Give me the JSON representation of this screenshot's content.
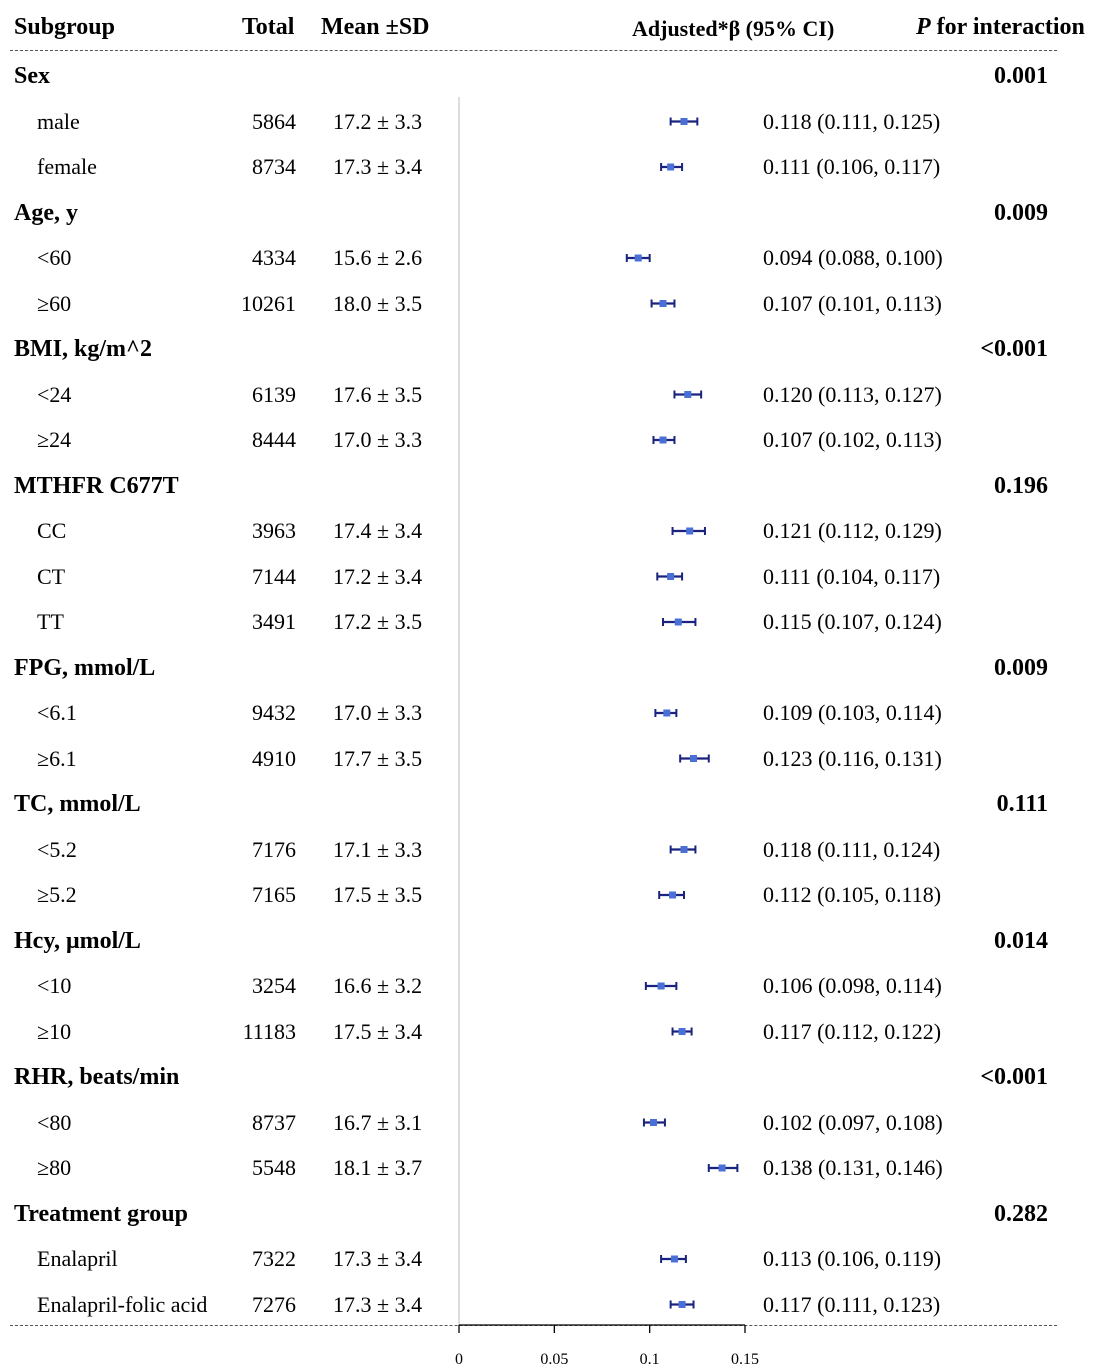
{
  "header": {
    "subgroup": "Subgroup",
    "total": "Total",
    "mean_sd": "Mean ±SD",
    "beta": "Adjusted*β (95% CI)",
    "p_italic": "P",
    "p_rest": " for interaction"
  },
  "rows": [
    {
      "kind": "group",
      "label": "Sex",
      "p": "0.001"
    },
    {
      "kind": "sub",
      "label": "male",
      "total": "5864",
      "mean_sd": "17.2 ± 3.3",
      "ci_text": "0.118 (0.111, 0.125)"
    },
    {
      "kind": "sub",
      "label": "female",
      "total": "8734",
      "mean_sd": "17.3 ± 3.4",
      "ci_text": "0.111 (0.106, 0.117)"
    },
    {
      "kind": "group",
      "label": "Age, y",
      "p": "0.009"
    },
    {
      "kind": "sub",
      "label": "<60",
      "total": "4334",
      "mean_sd": "15.6 ± 2.6",
      "ci_text": "0.094 (0.088, 0.100)"
    },
    {
      "kind": "sub",
      "label": "≥60",
      "total": "10261",
      "mean_sd": "18.0 ± 3.5",
      "ci_text": "0.107 (0.101, 0.113)"
    },
    {
      "kind": "group",
      "label": "BMI, kg/m^2",
      "p": "<0.001"
    },
    {
      "kind": "sub",
      "label": "<24",
      "total": "6139",
      "mean_sd": "17.6 ± 3.5",
      "ci_text": "0.120 (0.113, 0.127)"
    },
    {
      "kind": "sub",
      "label": "≥24",
      "total": "8444",
      "mean_sd": "17.0 ± 3.3",
      "ci_text": "0.107 (0.102, 0.113)"
    },
    {
      "kind": "group",
      "label": "MTHFR C677T",
      "p": "0.196"
    },
    {
      "kind": "sub",
      "label": "CC",
      "total": "3963",
      "mean_sd": "17.4 ± 3.4",
      "ci_text": "0.121 (0.112, 0.129)"
    },
    {
      "kind": "sub",
      "label": "CT",
      "total": "7144",
      "mean_sd": "17.2 ± 3.4",
      "ci_text": "0.111 (0.104, 0.117)"
    },
    {
      "kind": "sub",
      "label": "TT",
      "total": "3491",
      "mean_sd": "17.2 ± 3.5",
      "ci_text": "0.115 (0.107, 0.124)"
    },
    {
      "kind": "group",
      "label": "FPG, mmol/L",
      "p": "0.009"
    },
    {
      "kind": "sub",
      "label": "<6.1",
      "total": "9432",
      "mean_sd": "17.0 ± 3.3",
      "ci_text": "0.109 (0.103, 0.114)"
    },
    {
      "kind": "sub",
      "label": "≥6.1",
      "total": "4910",
      "mean_sd": "17.7 ± 3.5",
      "ci_text": "0.123 (0.116, 0.131)"
    },
    {
      "kind": "group",
      "label": "TC, mmol/L",
      "p": "0.111"
    },
    {
      "kind": "sub",
      "label": "<5.2",
      "total": "7176",
      "mean_sd": "17.1 ± 3.3",
      "ci_text": "0.118 (0.111, 0.124)"
    },
    {
      "kind": "sub",
      "label": "≥5.2",
      "total": "7165",
      "mean_sd": "17.5 ± 3.5",
      "ci_text": "0.112 (0.105, 0.118)"
    },
    {
      "kind": "group",
      "label": "Hcy, μmol/L",
      "p": "0.014"
    },
    {
      "kind": "sub",
      "label": "<10",
      "total": "3254",
      "mean_sd": "16.6 ± 3.2",
      "ci_text": "0.106 (0.098, 0.114)"
    },
    {
      "kind": "sub",
      "label": "≥10",
      "total": "11183",
      "mean_sd": "17.5 ± 3.4",
      "ci_text": "0.117 (0.112, 0.122)"
    },
    {
      "kind": "group",
      "label": "RHR, beats/min",
      "p": "<0.001"
    },
    {
      "kind": "sub",
      "label": "<80",
      "total": "8737",
      "mean_sd": "16.7 ± 3.1",
      "ci_text": "0.102 (0.097, 0.108)"
    },
    {
      "kind": "sub",
      "label": "≥80",
      "total": "5548",
      "mean_sd": "18.1 ± 3.7",
      "ci_text": "0.138 (0.131, 0.146)"
    },
    {
      "kind": "group",
      "label": "Treatment group",
      "p": "0.282"
    },
    {
      "kind": "sub",
      "label": "Enalapril",
      "total": "7322",
      "mean_sd": "17.3 ± 3.4",
      "ci_text": "0.113 (0.106, 0.119)"
    },
    {
      "kind": "sub",
      "label": "Enalapril-folic acid",
      "total": "7276",
      "mean_sd": "17.3 ± 3.4",
      "ci_text": "0.117 (0.111, 0.123)"
    }
  ],
  "chart_data": {
    "type": "forest",
    "xlim": [
      0,
      0.15
    ],
    "xticks": [
      0,
      0.05,
      0.1,
      0.15
    ],
    "xtick_labels": [
      "0",
      "0.05",
      "0.1",
      "0.15"
    ],
    "reference_line": 0,
    "colors": {
      "point": "#4a6fd6",
      "ci": "#1a237e",
      "axis": "#000000",
      "reference": "#bbbbbb"
    },
    "points": [
      {
        "subgroup": "male",
        "beta": 0.118,
        "lower": 0.111,
        "upper": 0.125
      },
      {
        "subgroup": "female",
        "beta": 0.111,
        "lower": 0.106,
        "upper": 0.117
      },
      {
        "subgroup": "<60",
        "beta": 0.094,
        "lower": 0.088,
        "upper": 0.1
      },
      {
        "subgroup": "≥60",
        "beta": 0.107,
        "lower": 0.101,
        "upper": 0.113
      },
      {
        "subgroup": "<24",
        "beta": 0.12,
        "lower": 0.113,
        "upper": 0.127
      },
      {
        "subgroup": "≥24",
        "beta": 0.107,
        "lower": 0.102,
        "upper": 0.113
      },
      {
        "subgroup": "CC",
        "beta": 0.121,
        "lower": 0.112,
        "upper": 0.129
      },
      {
        "subgroup": "CT",
        "beta": 0.111,
        "lower": 0.104,
        "upper": 0.117
      },
      {
        "subgroup": "TT",
        "beta": 0.115,
        "lower": 0.107,
        "upper": 0.124
      },
      {
        "subgroup": "<6.1",
        "beta": 0.109,
        "lower": 0.103,
        "upper": 0.114
      },
      {
        "subgroup": "≥6.1",
        "beta": 0.123,
        "lower": 0.116,
        "upper": 0.131
      },
      {
        "subgroup": "<5.2",
        "beta": 0.118,
        "lower": 0.111,
        "upper": 0.124
      },
      {
        "subgroup": "≥5.2",
        "beta": 0.112,
        "lower": 0.105,
        "upper": 0.118
      },
      {
        "subgroup": "<10",
        "beta": 0.106,
        "lower": 0.098,
        "upper": 0.114
      },
      {
        "subgroup": "≥10",
        "beta": 0.117,
        "lower": 0.112,
        "upper": 0.122
      },
      {
        "subgroup": "<80",
        "beta": 0.102,
        "lower": 0.097,
        "upper": 0.108
      },
      {
        "subgroup": "≥80",
        "beta": 0.138,
        "lower": 0.131,
        "upper": 0.146
      },
      {
        "subgroup": "Enalapril",
        "beta": 0.113,
        "lower": 0.106,
        "upper": 0.119
      },
      {
        "subgroup": "Enalapril-folic acid",
        "beta": 0.117,
        "lower": 0.111,
        "upper": 0.123
      }
    ]
  }
}
